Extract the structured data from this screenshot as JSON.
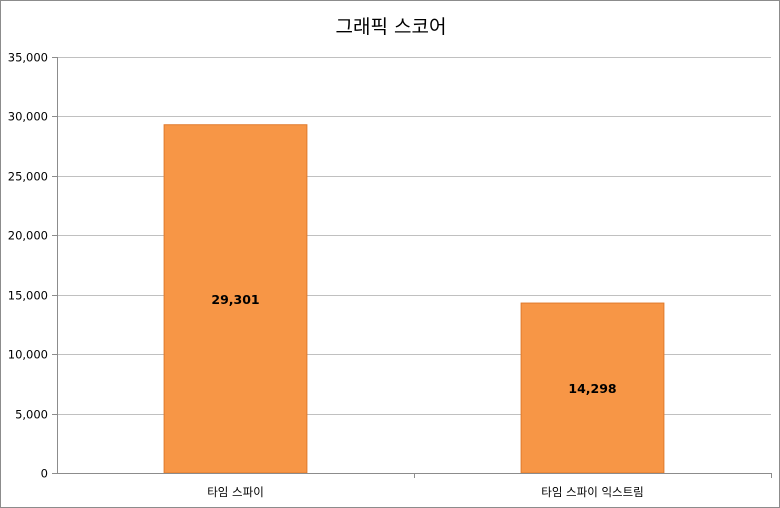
{
  "chart_data": {
    "type": "bar",
    "title": "그래픽 스코어",
    "xlabel": "",
    "ylabel": "",
    "categories": [
      "타임 스파이",
      "타임 스파이 익스트림"
    ],
    "values": [
      29301,
      14298
    ],
    "data_labels": [
      "29,301",
      "14,298"
    ],
    "ylim": [
      0,
      35000
    ],
    "yticks": [
      0,
      5000,
      10000,
      15000,
      20000,
      25000,
      30000,
      35000
    ],
    "ytick_labels": [
      "0",
      "5,000",
      "10,000",
      "15,000",
      "20,000",
      "25,000",
      "30,000",
      "35,000"
    ],
    "grid": true,
    "legend": "none",
    "bar_color": "#f79646",
    "bar_edge_color": "#e07a2c"
  }
}
